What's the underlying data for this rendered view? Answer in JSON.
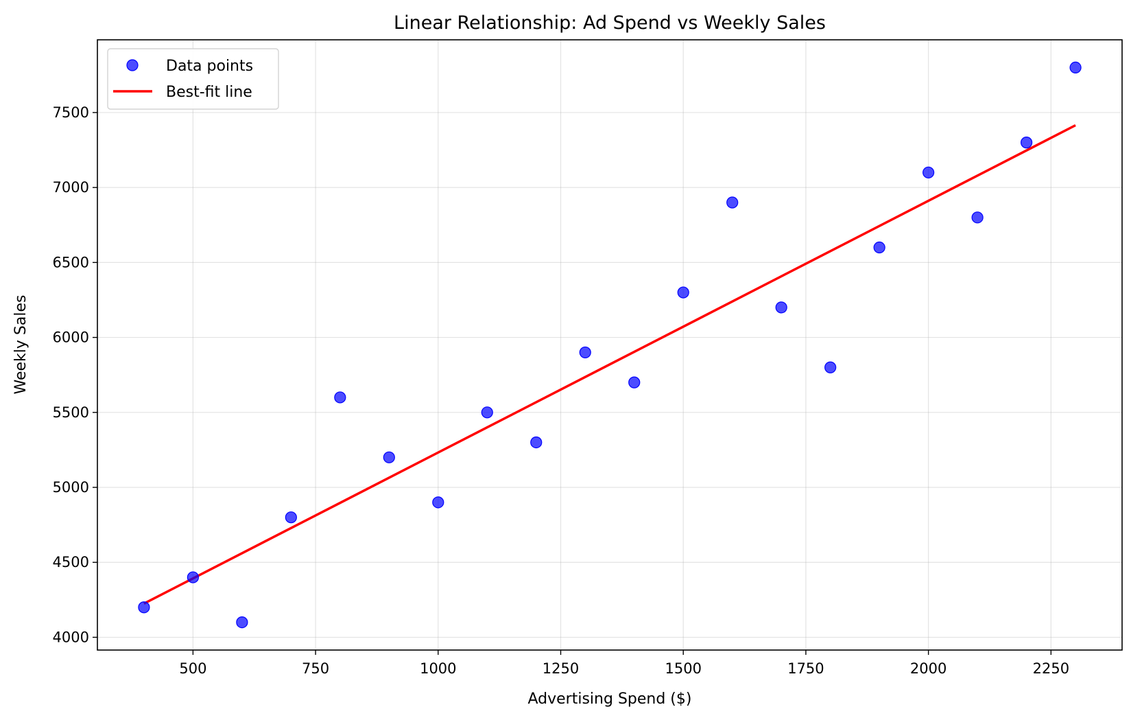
{
  "chart_data": {
    "type": "scatter",
    "title": "Linear Relationship: Ad Spend vs Weekly Sales",
    "xlabel": "Advertising Spend ($)",
    "ylabel": "Weekly Sales",
    "xlim": [
      305,
      2395
    ],
    "ylim": [
      3915,
      7985
    ],
    "xticks": [
      500,
      750,
      1000,
      1250,
      1500,
      1750,
      2000,
      2250
    ],
    "yticks": [
      4000,
      4500,
      5000,
      5500,
      6000,
      6500,
      7000,
      7500
    ],
    "grid": true,
    "legend_position": "top-left",
    "series": [
      {
        "name": "Data points",
        "kind": "scatter",
        "color": "#0000ff",
        "x": [
          400,
          500,
          600,
          700,
          800,
          900,
          1000,
          1100,
          1200,
          1300,
          1400,
          1500,
          1600,
          1700,
          1800,
          1900,
          2000,
          2100,
          2200,
          2300
        ],
        "y": [
          4200,
          4400,
          4100,
          4800,
          5600,
          5200,
          4900,
          5500,
          5300,
          5900,
          5700,
          6300,
          6900,
          6200,
          5800,
          6600,
          7100,
          6800,
          7300,
          7800
        ]
      },
      {
        "name": "Best-fit line",
        "kind": "line",
        "color": "#ff0000",
        "x": [
          400,
          2300
        ],
        "y": [
          4225,
          7415
        ]
      }
    ]
  }
}
